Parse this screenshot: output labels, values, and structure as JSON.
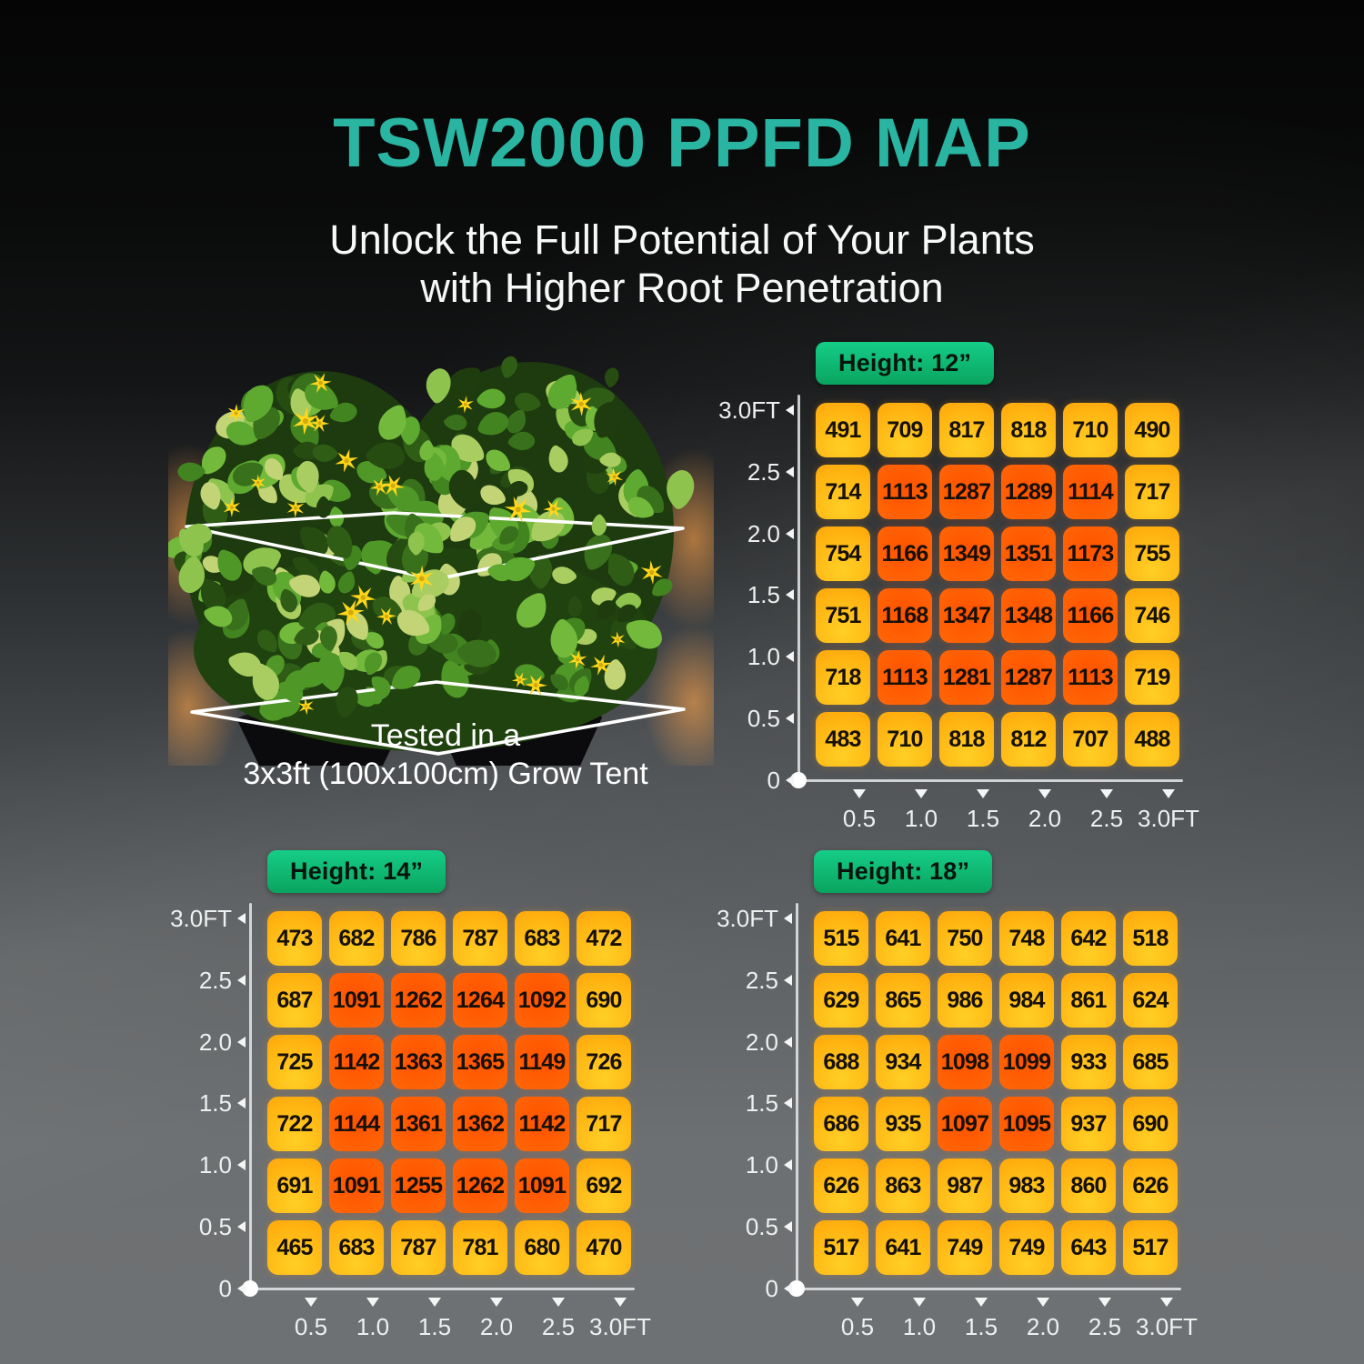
{
  "page": {
    "title": "TSW2000 PPFD MAP",
    "subtitle_line1": "Unlock the Full Potential of Your Plants",
    "subtitle_line2": "with Higher Root Penetration"
  },
  "tent_photo": {
    "caption_line1": "Tested in a",
    "caption_line2": "3x3ft (100x100cm) Grow Tent"
  },
  "colors": {
    "accent_teal": "#2ab5a3",
    "badge_green_top": "#15cd87",
    "badge_green_bottom": "#0aa45f",
    "cell_warm_top": "#ffcf25",
    "cell_warm_bottom": "#ff9b05",
    "cell_hot_core": "#ff5200",
    "cell_hot_edge": "#ff8c3a",
    "axis_color": "#e6e8e9"
  },
  "chart_data": [
    {
      "type": "heatmap",
      "title": "Height: 12”",
      "x_ticks": [
        "0.5",
        "1.0",
        "1.5",
        "2.0",
        "2.5",
        "3.0FT"
      ],
      "y_ticks": [
        "3.0FT",
        "2.5",
        "2.0",
        "1.5",
        "1.0",
        "0.5",
        "0"
      ],
      "hot_threshold": 1050,
      "values": [
        [
          491,
          709,
          817,
          818,
          710,
          490
        ],
        [
          714,
          1113,
          1287,
          1289,
          1114,
          717
        ],
        [
          754,
          1166,
          1349,
          1351,
          1173,
          755
        ],
        [
          751,
          1168,
          1347,
          1348,
          1166,
          746
        ],
        [
          718,
          1113,
          1281,
          1287,
          1113,
          719
        ],
        [
          483,
          710,
          818,
          812,
          707,
          488
        ]
      ]
    },
    {
      "type": "heatmap",
      "title": "Height: 14”",
      "x_ticks": [
        "0.5",
        "1.0",
        "1.5",
        "2.0",
        "2.5",
        "3.0FT"
      ],
      "y_ticks": [
        "3.0FT",
        "2.5",
        "2.0",
        "1.5",
        "1.0",
        "0.5",
        "0"
      ],
      "hot_threshold": 1050,
      "values": [
        [
          473,
          682,
          786,
          787,
          683,
          472
        ],
        [
          687,
          1091,
          1262,
          1264,
          1092,
          690
        ],
        [
          725,
          1142,
          1363,
          1365,
          1149,
          726
        ],
        [
          722,
          1144,
          1361,
          1362,
          1142,
          717
        ],
        [
          691,
          1091,
          1255,
          1262,
          1091,
          692
        ],
        [
          465,
          683,
          787,
          781,
          680,
          470
        ]
      ]
    },
    {
      "type": "heatmap",
      "title": "Height: 18”",
      "x_ticks": [
        "0.5",
        "1.0",
        "1.5",
        "2.0",
        "2.5",
        "3.0FT"
      ],
      "y_ticks": [
        "3.0FT",
        "2.5",
        "2.0",
        "1.5",
        "1.0",
        "0.5",
        "0"
      ],
      "hot_threshold": 1050,
      "values": [
        [
          515,
          641,
          750,
          748,
          642,
          518
        ],
        [
          629,
          865,
          986,
          984,
          861,
          624
        ],
        [
          688,
          934,
          1098,
          1099,
          933,
          685
        ],
        [
          686,
          935,
          1097,
          1095,
          937,
          690
        ],
        [
          626,
          863,
          987,
          983,
          860,
          626
        ],
        [
          517,
          641,
          749,
          749,
          643,
          517
        ]
      ]
    }
  ]
}
